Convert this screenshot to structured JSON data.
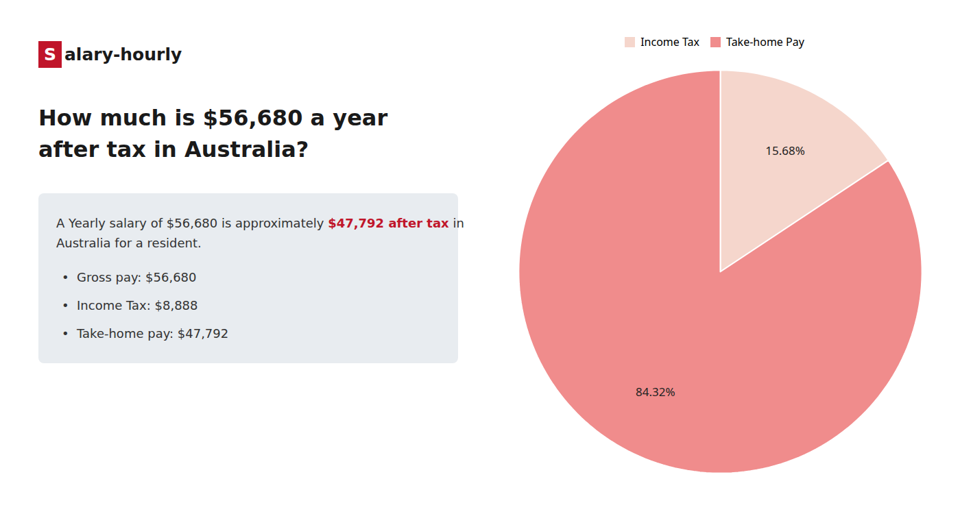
{
  "chart_data": {
    "type": "pie",
    "title": "How much is $56,680 a year after tax in Australia?",
    "categories": [
      "Income Tax",
      "Take-home Pay"
    ],
    "values": [
      15.68,
      84.32
    ],
    "value_labels": [
      "15.68%",
      "84.32%"
    ],
    "colors": [
      "#f5d6cc",
      "#f08c8c"
    ],
    "data_labels": true,
    "legend": "top",
    "annotations": [
      [
        {
          "text": "S",
          "color": "#c0152a"
        },
        {
          "text": "alary-hourly"
        }
      ],
      [
        {
          "text": "A Yearly salary of $56,680 is approximately "
        },
        {
          "text": "$47,792 after tax",
          "color": "#c0152a"
        },
        {
          "text": " in"
        }
      ],
      [
        {
          "text": "Australia for a resident."
        }
      ],
      [
        {
          "text": "•  Gross pay: $56,680"
        }
      ],
      [
        {
          "text": "•  Income Tax: $8,888"
        }
      ],
      [
        {
          "text": "•  Take-home pay: $47,792"
        }
      ]
    ]
  }
}
